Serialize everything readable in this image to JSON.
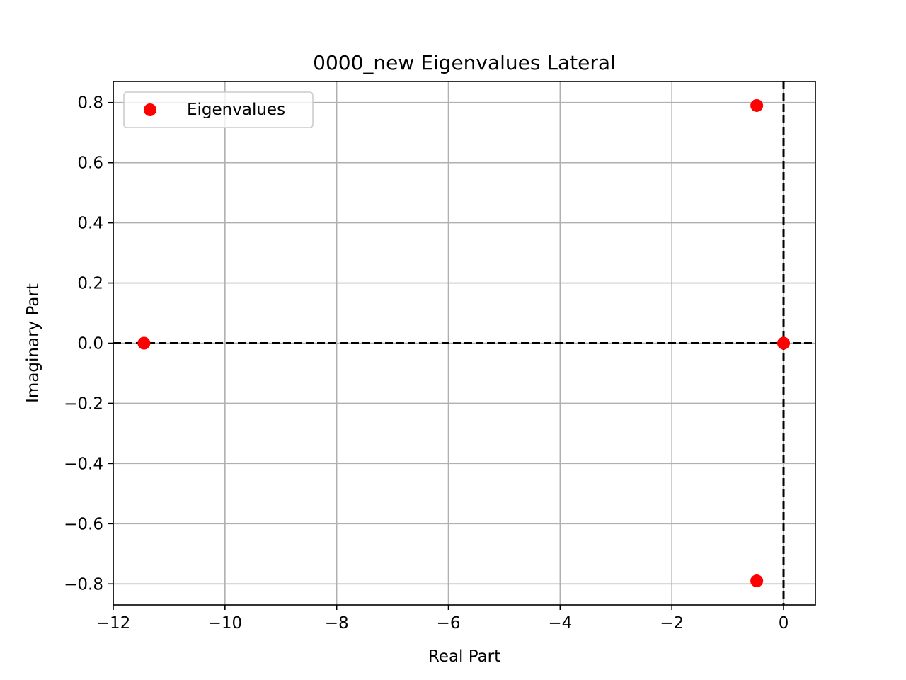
{
  "chart_data": {
    "type": "scatter",
    "title": "0000_new Eigenvalues Lateral",
    "xlabel": "Real Part",
    "ylabel": "Imaginary Part",
    "xlim": [
      -12.0,
      0.57
    ],
    "ylim": [
      -0.87,
      0.87
    ],
    "xticks": [
      -12,
      -10,
      -8,
      -6,
      -4,
      -2,
      0
    ],
    "xtick_labels": [
      "−12",
      "−10",
      "−8",
      "−6",
      "−4",
      "−2",
      "0"
    ],
    "yticks": [
      -0.8,
      -0.6,
      -0.4,
      -0.2,
      0.0,
      0.2,
      0.4,
      0.6,
      0.8
    ],
    "ytick_labels": [
      "−0.8",
      "−0.6",
      "−0.4",
      "−0.2",
      "0.0",
      "0.2",
      "0.4",
      "0.6",
      "0.8"
    ],
    "grid": true,
    "legend_position": "top-left",
    "reference_lines": {
      "x": 0,
      "y": 0,
      "style": "dashed",
      "color": "#000000"
    },
    "series": [
      {
        "name": "Eigenvalues",
        "color": "#ff0000",
        "points": [
          {
            "x": -0.48,
            "y": 0.79
          },
          {
            "x": -0.48,
            "y": -0.79
          },
          {
            "x": -11.45,
            "y": 0.0
          },
          {
            "x": 0.0,
            "y": 0.0
          }
        ]
      }
    ]
  }
}
